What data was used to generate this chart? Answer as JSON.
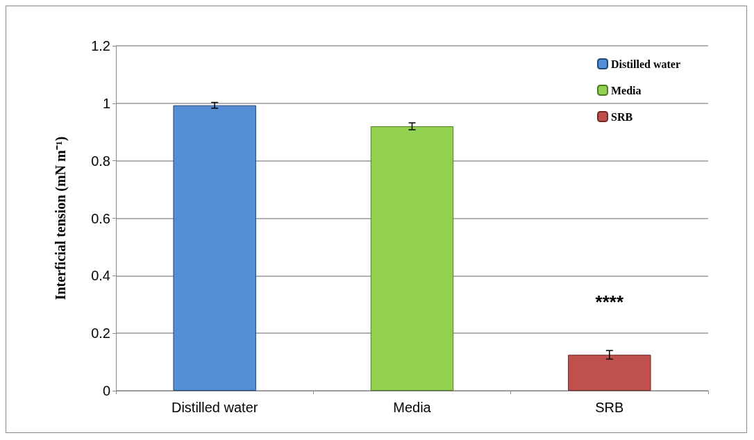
{
  "chart_data": {
    "type": "bar",
    "ylabel": "Interficial tension (mN m⁻¹)",
    "categories": [
      "Distilled water",
      "Media",
      "SRB"
    ],
    "series": [
      {
        "name": "Distilled water",
        "color": "#558ed5",
        "values": [
          0.993,
          null,
          null
        ],
        "errors": [
          0.01,
          null,
          null
        ]
      },
      {
        "name": "Media",
        "color": "#92d050",
        "values": [
          null,
          0.92,
          null
        ],
        "errors": [
          null,
          0.012,
          null
        ]
      },
      {
        "name": "SRB",
        "color": "#c0504d",
        "values": [
          null,
          null,
          0.125
        ],
        "errors": [
          null,
          null,
          0.015
        ]
      }
    ],
    "ylim": [
      0,
      1.2
    ],
    "yticks": [
      0,
      0.2,
      0.4,
      0.6,
      0.8,
      1,
      1.2
    ],
    "grid": "y",
    "legend": "top right",
    "annotations": [
      "****"
    ]
  }
}
